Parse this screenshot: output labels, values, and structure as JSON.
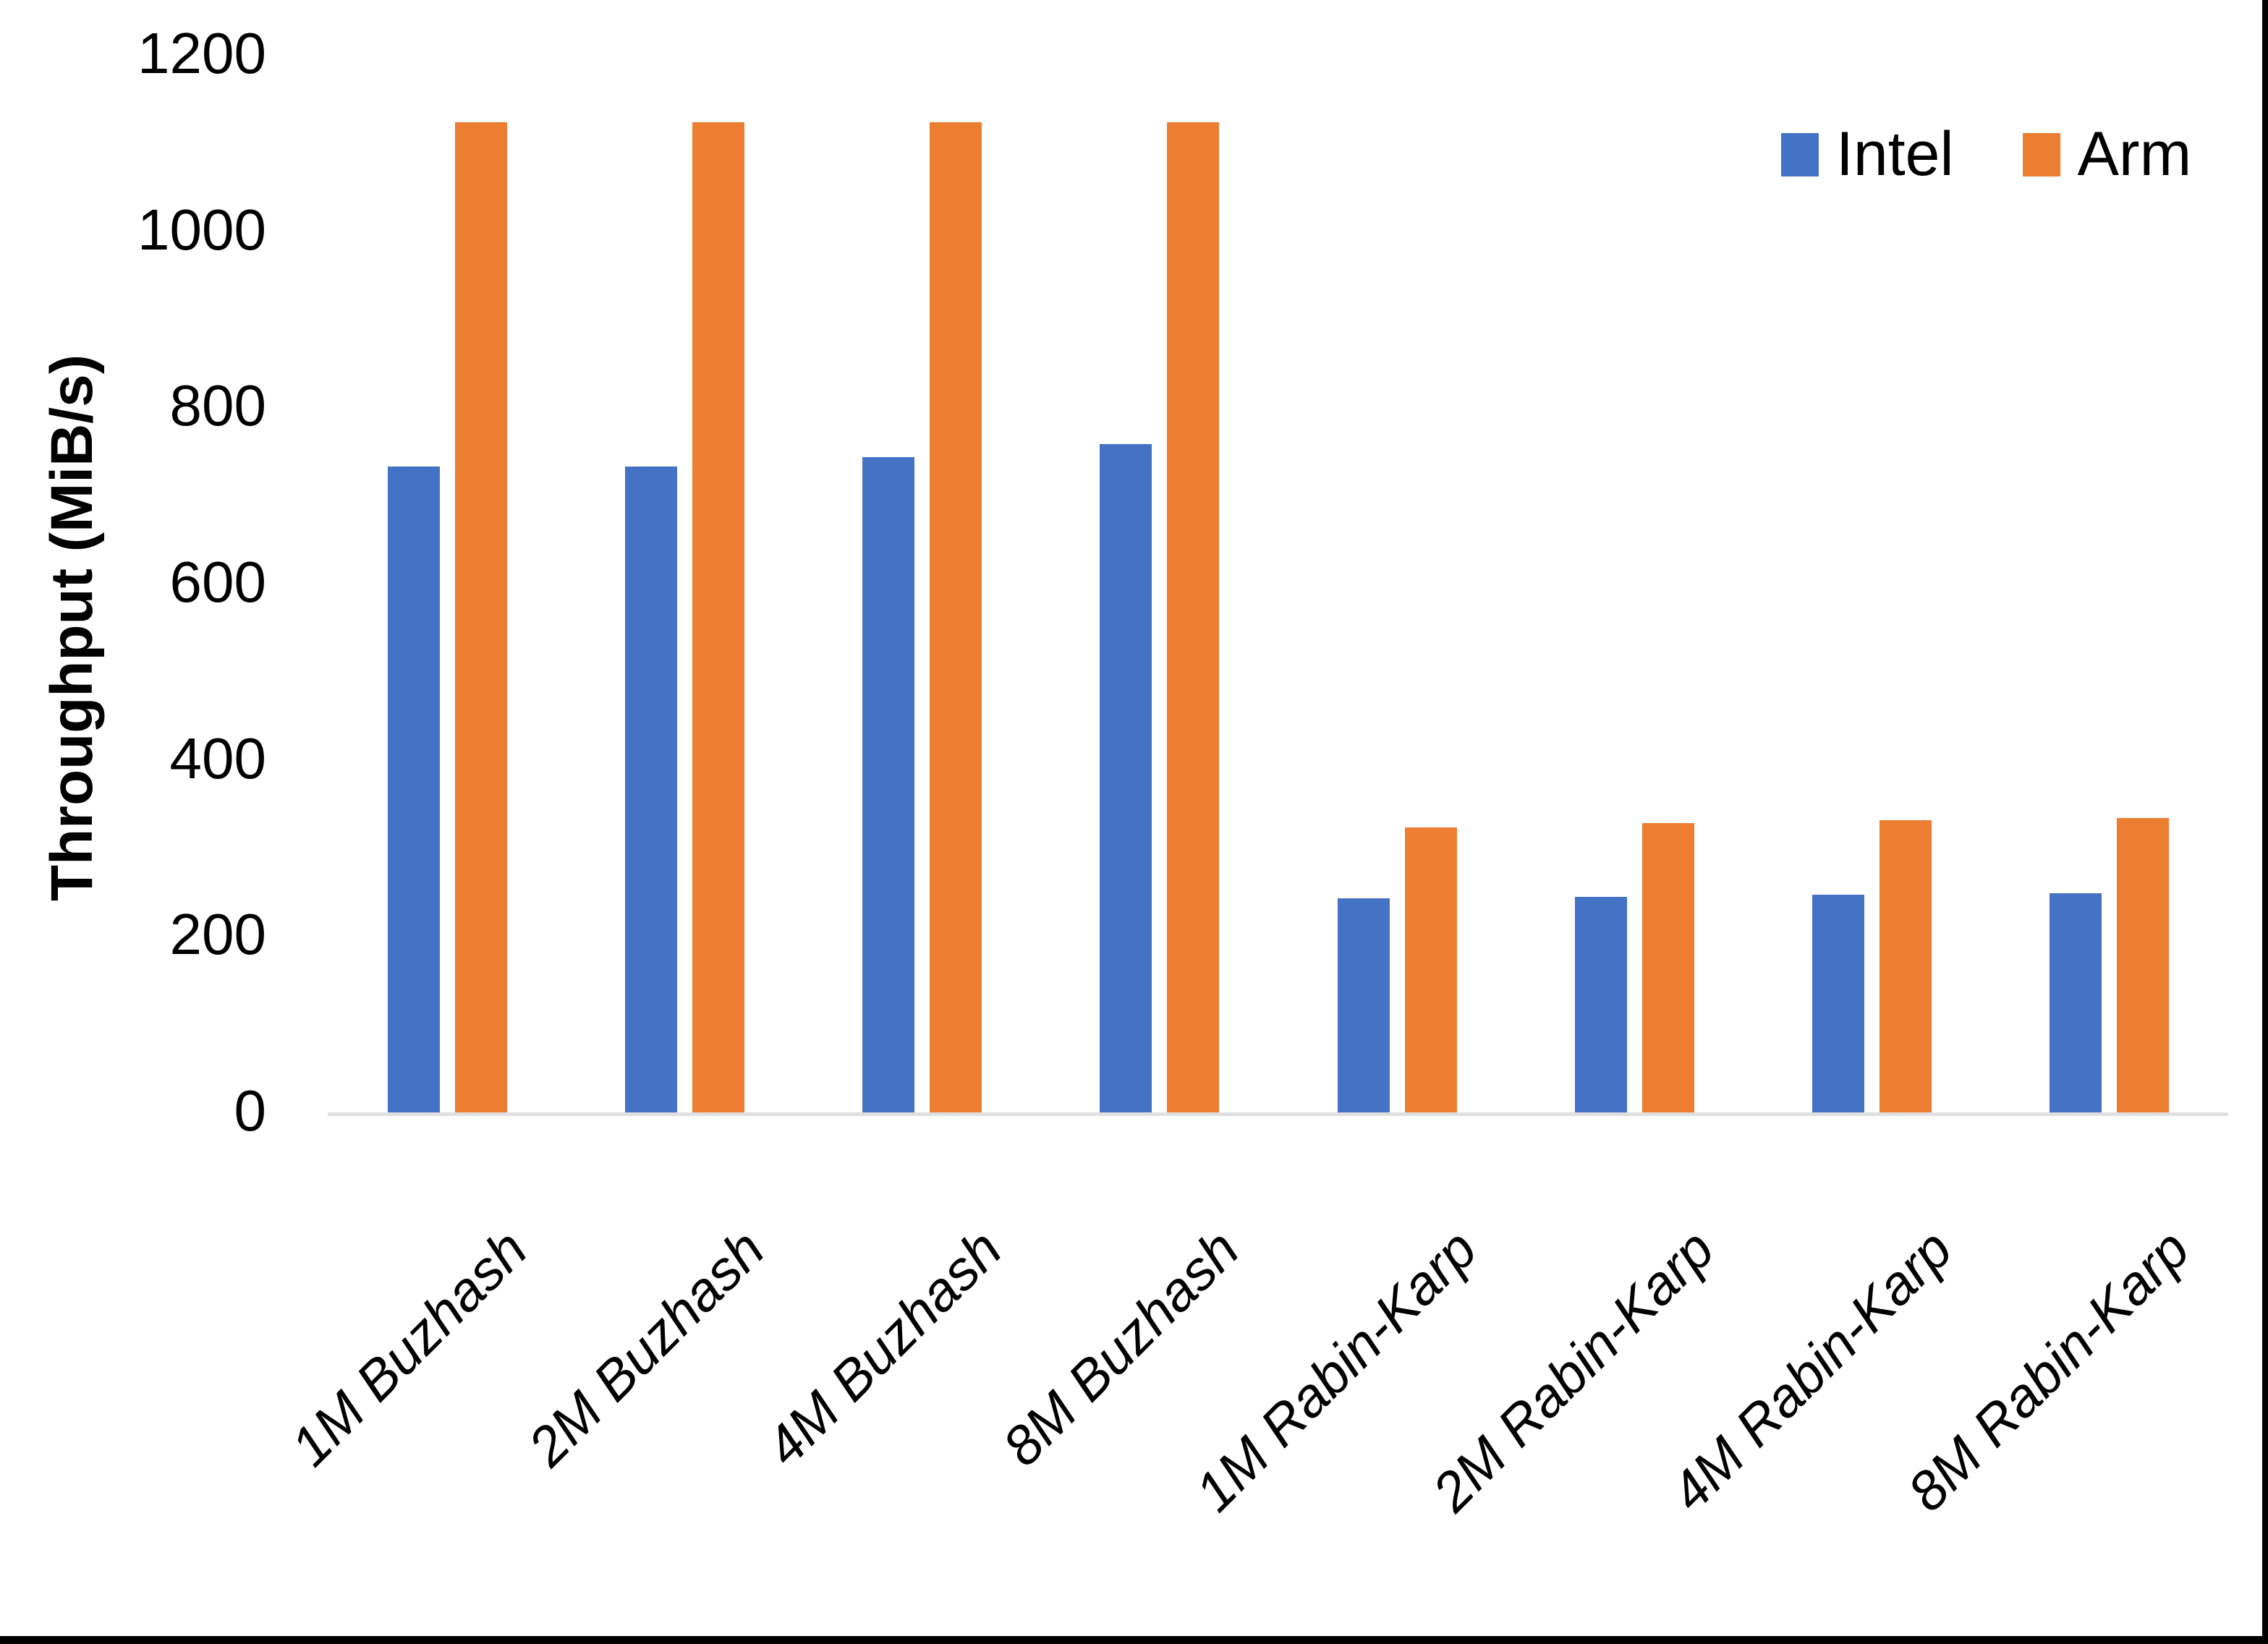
{
  "chart_data": {
    "type": "bar",
    "categories": [
      "1M Buzhash",
      "2M Buzhash",
      "4M Buzhash",
      "8M Buzhash",
      "1M Rabin-Karp",
      "2M Rabin-Karp",
      "4M Rabin-Karp",
      "8M Rabin-Karp"
    ],
    "series": [
      {
        "name": "Intel",
        "color": "#4472C4",
        "values": [
          735,
          735,
          745,
          760,
          245,
          246,
          249,
          250
        ]
      },
      {
        "name": "Arm",
        "color": "#ED7D31",
        "values": [
          1125,
          1125,
          1125,
          1125,
          325,
          330,
          333,
          336
        ]
      }
    ],
    "title": "",
    "xlabel": "",
    "ylabel": "Throughput (MiB/s)",
    "ylim": [
      0,
      1200
    ],
    "yticks": [
      0,
      200,
      400,
      600,
      800,
      1000,
      1200
    ],
    "grid": false,
    "legend_position": "top-right",
    "axis_line_color": "#E0E0E0",
    "text_color": "#000000",
    "category_label_style": "italic-45deg"
  }
}
